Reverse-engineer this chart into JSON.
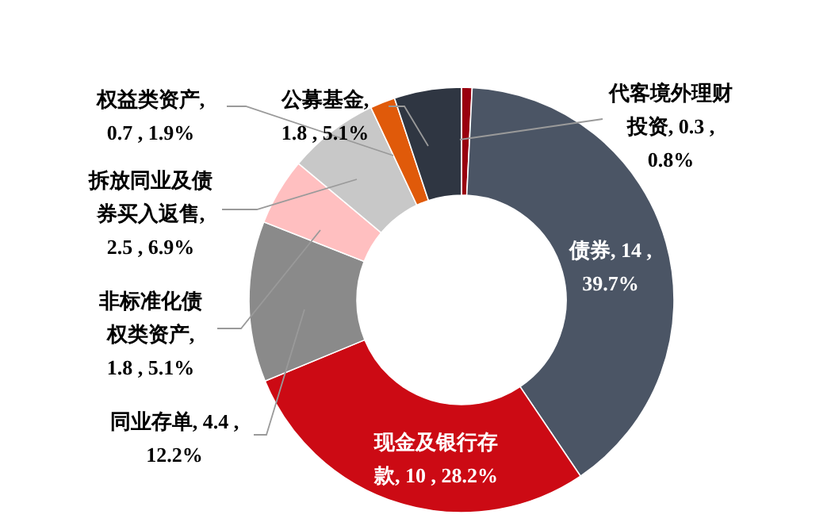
{
  "chart_data": {
    "type": "donut",
    "categories": [
      "代客境外理财投资",
      "债券",
      "现金及银行存款",
      "同业存单",
      "非标准化债权类资产",
      "拆放同业及债券买入返售",
      "权益类资产",
      "公募基金"
    ],
    "values": [
      0.8,
      39.7,
      28.2,
      12.2,
      5.1,
      6.9,
      1.9,
      5.1
    ],
    "value_labels": [
      ", 0.3 , 0.8%",
      ", 14 , 39.7%",
      ", 10 , 28.2%",
      ", 4.4 , 12.2%",
      ", 1.8 , 5.1%",
      ", 2.5 , 6.9%",
      ", 0.7 , 1.9%",
      ", 1.8 , 5.1%"
    ],
    "colors": [
      "#99000f",
      "#4b5565",
      "#cc0a14",
      "#8a8a8a",
      "#ffbfc0",
      "#c8c8c8",
      "#e05a0a",
      "#2f3642"
    ],
    "legend": false
  }
}
